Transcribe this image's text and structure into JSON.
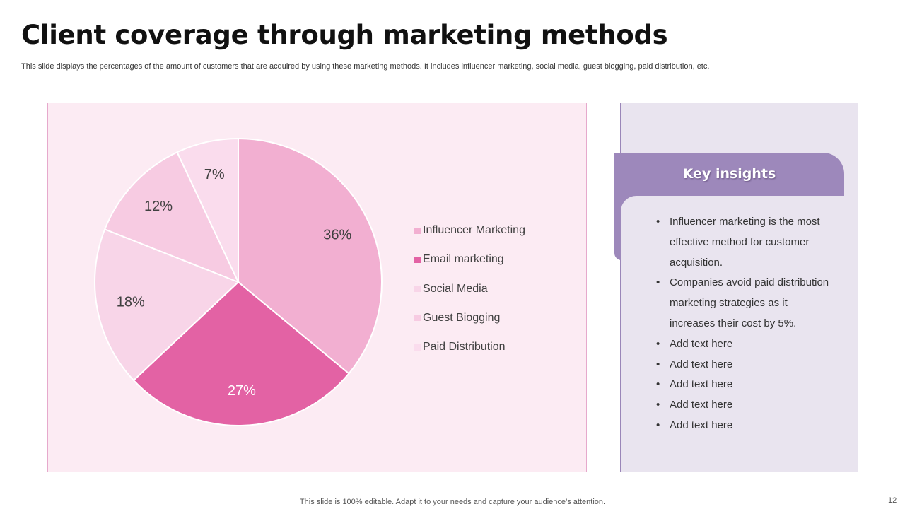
{
  "slide": {
    "title": "Client coverage through marketing methods",
    "subtitle": "This slide displays the percentages of the amount of customers that are acquired by using these marketing methods. It includes influencer marketing, social media, guest blogging, paid distribution, etc.",
    "footer": "This slide is 100% editable. Adapt it to your needs and capture your audience’s attention.",
    "page_number": "12"
  },
  "chart_data": {
    "type": "pie",
    "title": "",
    "categories": [
      "Influencer Marketing",
      "Email marketing",
      "Social Media",
      "Guest Biogging",
      "Paid Distribution"
    ],
    "values": [
      36,
      27,
      18,
      12,
      7
    ],
    "value_suffix": "%",
    "colors": [
      "#f2afd1",
      "#e362a4",
      "#f8d5e8",
      "#f7cbe2",
      "#fadced"
    ],
    "start_angle_deg": 0,
    "direction": "clockwise",
    "legend_position": "right"
  },
  "insights": {
    "header": "Key insights",
    "items": [
      "Influencer  marketing is the most effective method for customer acquisition.",
      "Companies avoid paid distribution marketing strategies as it increases their cost by 5%.",
      "Add text here",
      "Add text here",
      "Add text here",
      "Add text here",
      "Add text here"
    ],
    "bullet": "•",
    "colors": {
      "header_bg": "#9d88bb",
      "panel_bg": "#e9e4ef"
    }
  }
}
